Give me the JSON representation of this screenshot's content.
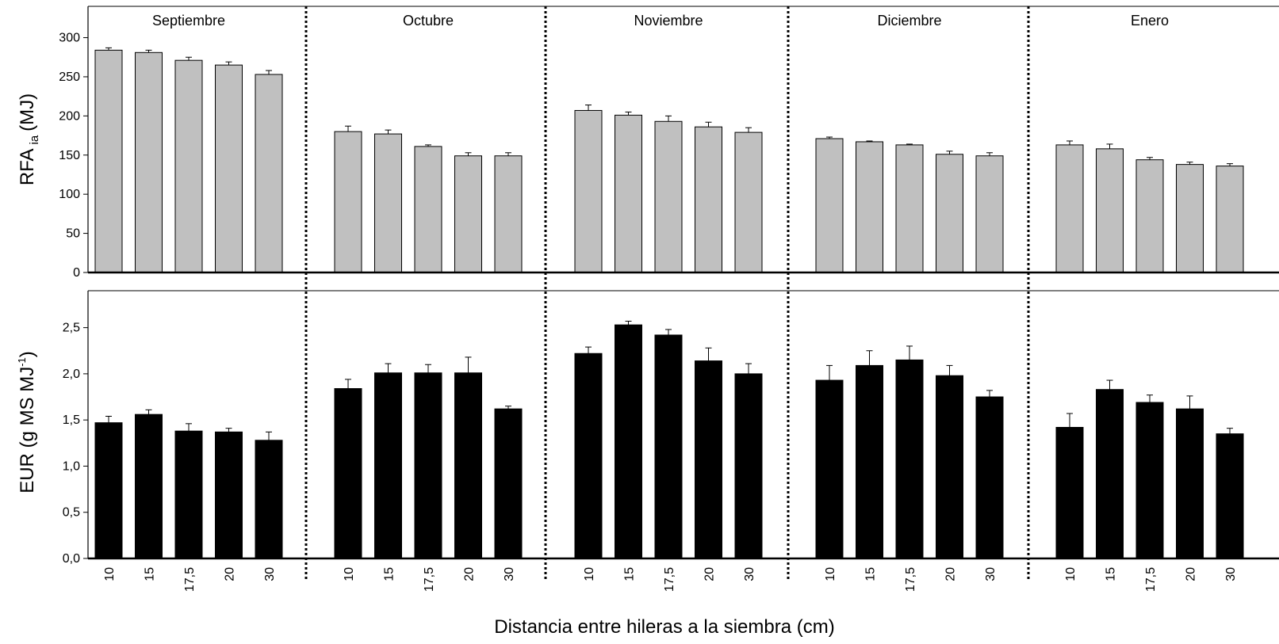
{
  "chart_data": [
    {
      "type": "bar",
      "ylabel": "RFA",
      "ylabel_subscript": "ia",
      "ylabel_unit": "(MJ)",
      "ylim": [
        0,
        340
      ],
      "yticks": [
        "0",
        "50",
        "100",
        "150",
        "200",
        "250",
        "300"
      ],
      "ytick_values": [
        0,
        50,
        100,
        150,
        200,
        250,
        300
      ],
      "bar_color": "#c0c0c0",
      "groups": [
        {
          "name": "Septiembre",
          "categories": [
            "10",
            "15",
            "17,5",
            "20",
            "30"
          ],
          "values": [
            284,
            281,
            271,
            265,
            253
          ],
          "errors": [
            3,
            3,
            4,
            4,
            5
          ]
        },
        {
          "name": "Octubre",
          "categories": [
            "10",
            "15",
            "17,5",
            "20",
            "30"
          ],
          "values": [
            180,
            177,
            161,
            149,
            149
          ],
          "errors": [
            7,
            5,
            2,
            4,
            4
          ]
        },
        {
          "name": "Noviembre",
          "categories": [
            "10",
            "15",
            "17,5",
            "20",
            "30"
          ],
          "values": [
            207,
            201,
            193,
            186,
            179
          ],
          "errors": [
            7,
            4,
            7,
            6,
            6
          ]
        },
        {
          "name": "Diciembre",
          "categories": [
            "10",
            "15",
            "17,5",
            "20",
            "30"
          ],
          "values": [
            171,
            167,
            163,
            151,
            149
          ],
          "errors": [
            2,
            1,
            1,
            4,
            4
          ]
        },
        {
          "name": "Enero",
          "categories": [
            "10",
            "15",
            "17,5",
            "20",
            "30"
          ],
          "values": [
            163,
            158,
            144,
            138,
            136
          ],
          "errors": [
            5,
            6,
            3,
            3,
            3
          ]
        }
      ]
    },
    {
      "type": "bar",
      "ylabel": "EUR (g MS MJ",
      "ylabel_superscript": "-1",
      "ylabel_close": ")",
      "ylim": [
        0,
        2.9
      ],
      "yticks": [
        "0,0",
        "0,5",
        "1,0",
        "1,5",
        "2,0",
        "2,5"
      ],
      "ytick_values": [
        0,
        0.5,
        1.0,
        1.5,
        2.0,
        2.5
      ],
      "bar_color": "#000000",
      "xlabel": "Distancia entre hileras a la siembra (cm)",
      "groups": [
        {
          "name": "Septiembre",
          "categories": [
            "10",
            "15",
            "17,5",
            "20",
            "30"
          ],
          "values": [
            1.47,
            1.56,
            1.38,
            1.37,
            1.28
          ],
          "errors": [
            0.07,
            0.05,
            0.08,
            0.04,
            0.09
          ]
        },
        {
          "name": "Octubre",
          "categories": [
            "10",
            "15",
            "17,5",
            "20",
            "30"
          ],
          "values": [
            1.84,
            2.01,
            2.01,
            2.01,
            1.62
          ],
          "errors": [
            0.1,
            0.1,
            0.09,
            0.17,
            0.03
          ]
        },
        {
          "name": "Noviembre",
          "categories": [
            "10",
            "15",
            "17,5",
            "20",
            "30"
          ],
          "values": [
            2.22,
            2.53,
            2.42,
            2.14,
            2.0
          ],
          "errors": [
            0.07,
            0.04,
            0.06,
            0.14,
            0.11
          ]
        },
        {
          "name": "Diciembre",
          "categories": [
            "10",
            "15",
            "17,5",
            "20",
            "30"
          ],
          "values": [
            1.93,
            2.09,
            2.15,
            1.98,
            1.75
          ],
          "errors": [
            0.16,
            0.16,
            0.15,
            0.11,
            0.07
          ]
        },
        {
          "name": "Enero",
          "categories": [
            "10",
            "15",
            "17,5",
            "20",
            "30"
          ],
          "values": [
            1.42,
            1.83,
            1.69,
            1.62,
            1.35
          ],
          "errors": [
            0.15,
            0.1,
            0.08,
            0.14,
            0.06
          ]
        }
      ]
    }
  ]
}
